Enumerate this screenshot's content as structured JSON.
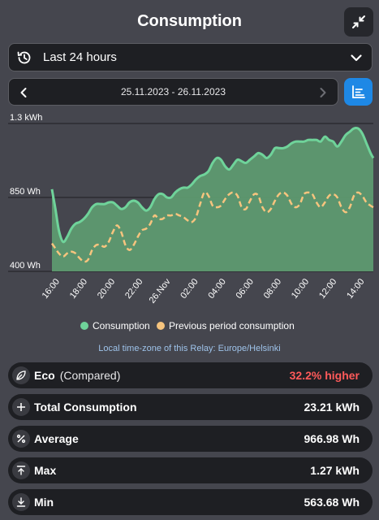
{
  "header": {
    "title": "Consumption"
  },
  "range_select": {
    "label": "Last 24 hours"
  },
  "date_nav": {
    "range": "25.11.2023 - 26.11.2023"
  },
  "timezone_note": "Local time-zone of this Relay: Europe/Helsinki",
  "colors": {
    "consumption": "#6fd39a",
    "previous": "#f6c47e",
    "accent": "#1e88e5",
    "higher": "#ff5a5a"
  },
  "stats": {
    "eco": {
      "label": "Eco",
      "sub": "(Compared)",
      "value": "32.2% higher",
      "icon": "leaf-icon"
    },
    "total": {
      "label": "Total Consumption",
      "value": "23.21 kWh",
      "icon": "plus-icon"
    },
    "average": {
      "label": "Average",
      "value": "966.98 Wh",
      "icon": "percent-icon"
    },
    "max": {
      "label": "Max",
      "value": "1.27 kWh",
      "icon": "arrow-up-icon"
    },
    "min": {
      "label": "Min",
      "value": "563.68 Wh",
      "icon": "arrow-down-icon"
    }
  },
  "chart_data": {
    "type": "area",
    "y_tick_labels": [
      "1.3 kWh",
      "850 Wh",
      "400 Wh"
    ],
    "y_ticks": [
      1300,
      850,
      400
    ],
    "ylim": [
      400,
      1300
    ],
    "x_tick_labels": [
      "16:00",
      "18:00",
      "20:00",
      "22:00",
      "26.Nov",
      "02:00",
      "04:00",
      "06:00",
      "08:00",
      "10:00",
      "12:00",
      "14:00"
    ],
    "x_hours": [
      0,
      2,
      4,
      6,
      8,
      10,
      12,
      14,
      16,
      18,
      20,
      22
    ],
    "xlim": [
      0,
      23.2
    ],
    "grid": true,
    "legend_position": "bottom",
    "series": [
      {
        "name": "Consumption",
        "x": [
          0,
          0.25,
          0.5,
          0.8,
          1.1,
          1.4,
          1.7,
          2,
          2.3,
          2.6,
          2.9,
          3.2,
          3.5,
          3.8,
          4.1,
          4.4,
          4.7,
          5,
          5.3,
          5.6,
          5.9,
          6.2,
          6.5,
          6.8,
          7.1,
          7.4,
          7.7,
          8,
          8.3,
          8.6,
          8.9,
          9.2,
          9.5,
          9.8,
          10.1,
          10.4,
          10.7,
          11,
          11.3,
          11.6,
          11.9,
          12.2,
          12.5,
          12.8,
          13.1,
          13.4,
          13.7,
          14,
          14.3,
          14.6,
          14.9,
          15.2,
          15.5,
          15.8,
          16.1,
          16.4,
          16.7,
          17,
          17.3,
          17.6,
          17.9,
          18.2,
          18.5,
          18.8,
          19.1,
          19.4,
          19.7,
          20,
          20.3,
          20.6,
          20.9,
          21.2,
          21.5,
          21.8,
          22.1,
          22.4,
          22.7,
          23,
          23.2
        ],
        "values": [
          900,
          780,
          650,
          580,
          610,
          660,
          690,
          700,
          720,
          750,
          790,
          810,
          810,
          810,
          820,
          820,
          800,
          780,
          790,
          820,
          830,
          820,
          790,
          770,
          790,
          840,
          870,
          870,
          850,
          850,
          880,
          900,
          910,
          910,
          930,
          960,
          980,
          990,
          1010,
          1060,
          1090,
          1080,
          1040,
          1020,
          1050,
          1080,
          1070,
          1060,
          1080,
          1100,
          1120,
          1110,
          1090,
          1110,
          1150,
          1150,
          1150,
          1160,
          1180,
          1190,
          1190,
          1190,
          1200,
          1200,
          1200,
          1190,
          1220,
          1200,
          1190,
          1160,
          1190,
          1230,
          1250,
          1270,
          1270,
          1240,
          1180,
          1120,
          1090
        ]
      },
      {
        "name": "Previous period consumption",
        "x": [
          0,
          0.25,
          0.5,
          0.8,
          1.1,
          1.4,
          1.7,
          2,
          2.3,
          2.6,
          2.9,
          3.2,
          3.5,
          3.8,
          4.1,
          4.4,
          4.7,
          5,
          5.3,
          5.6,
          5.9,
          6.2,
          6.5,
          6.8,
          7.1,
          7.4,
          7.7,
          8,
          8.3,
          8.6,
          8.9,
          9.2,
          9.5,
          9.8,
          10.1,
          10.4,
          10.7,
          11,
          11.3,
          11.6,
          11.9,
          12.2,
          12.5,
          12.8,
          13.1,
          13.4,
          13.7,
          14,
          14.3,
          14.6,
          14.9,
          15.2,
          15.5,
          15.8,
          16.1,
          16.4,
          16.7,
          17,
          17.3,
          17.6,
          17.9,
          18.2,
          18.5,
          18.8,
          19.1,
          19.4,
          19.7,
          20,
          20.3,
          20.6,
          20.9,
          21.2,
          21.5,
          21.8,
          22.1,
          22.4,
          22.7,
          23,
          23.2
        ],
        "values": [
          570,
          540,
          510,
          490,
          510,
          520,
          510,
          480,
          460,
          470,
          530,
          560,
          560,
          550,
          580,
          640,
          680,
          640,
          560,
          530,
          560,
          610,
          650,
          660,
          690,
          740,
          720,
          720,
          740,
          740,
          750,
          740,
          730,
          710,
          700,
          730,
          810,
          880,
          860,
          800,
          790,
          800,
          840,
          870,
          880,
          860,
          790,
          780,
          830,
          870,
          860,
          790,
          760,
          780,
          830,
          870,
          880,
          860,
          810,
          790,
          810,
          870,
          880,
          870,
          820,
          790,
          820,
          860,
          870,
          850,
          790,
          760,
          790,
          860,
          880,
          860,
          820,
          800,
          790
        ]
      }
    ]
  }
}
